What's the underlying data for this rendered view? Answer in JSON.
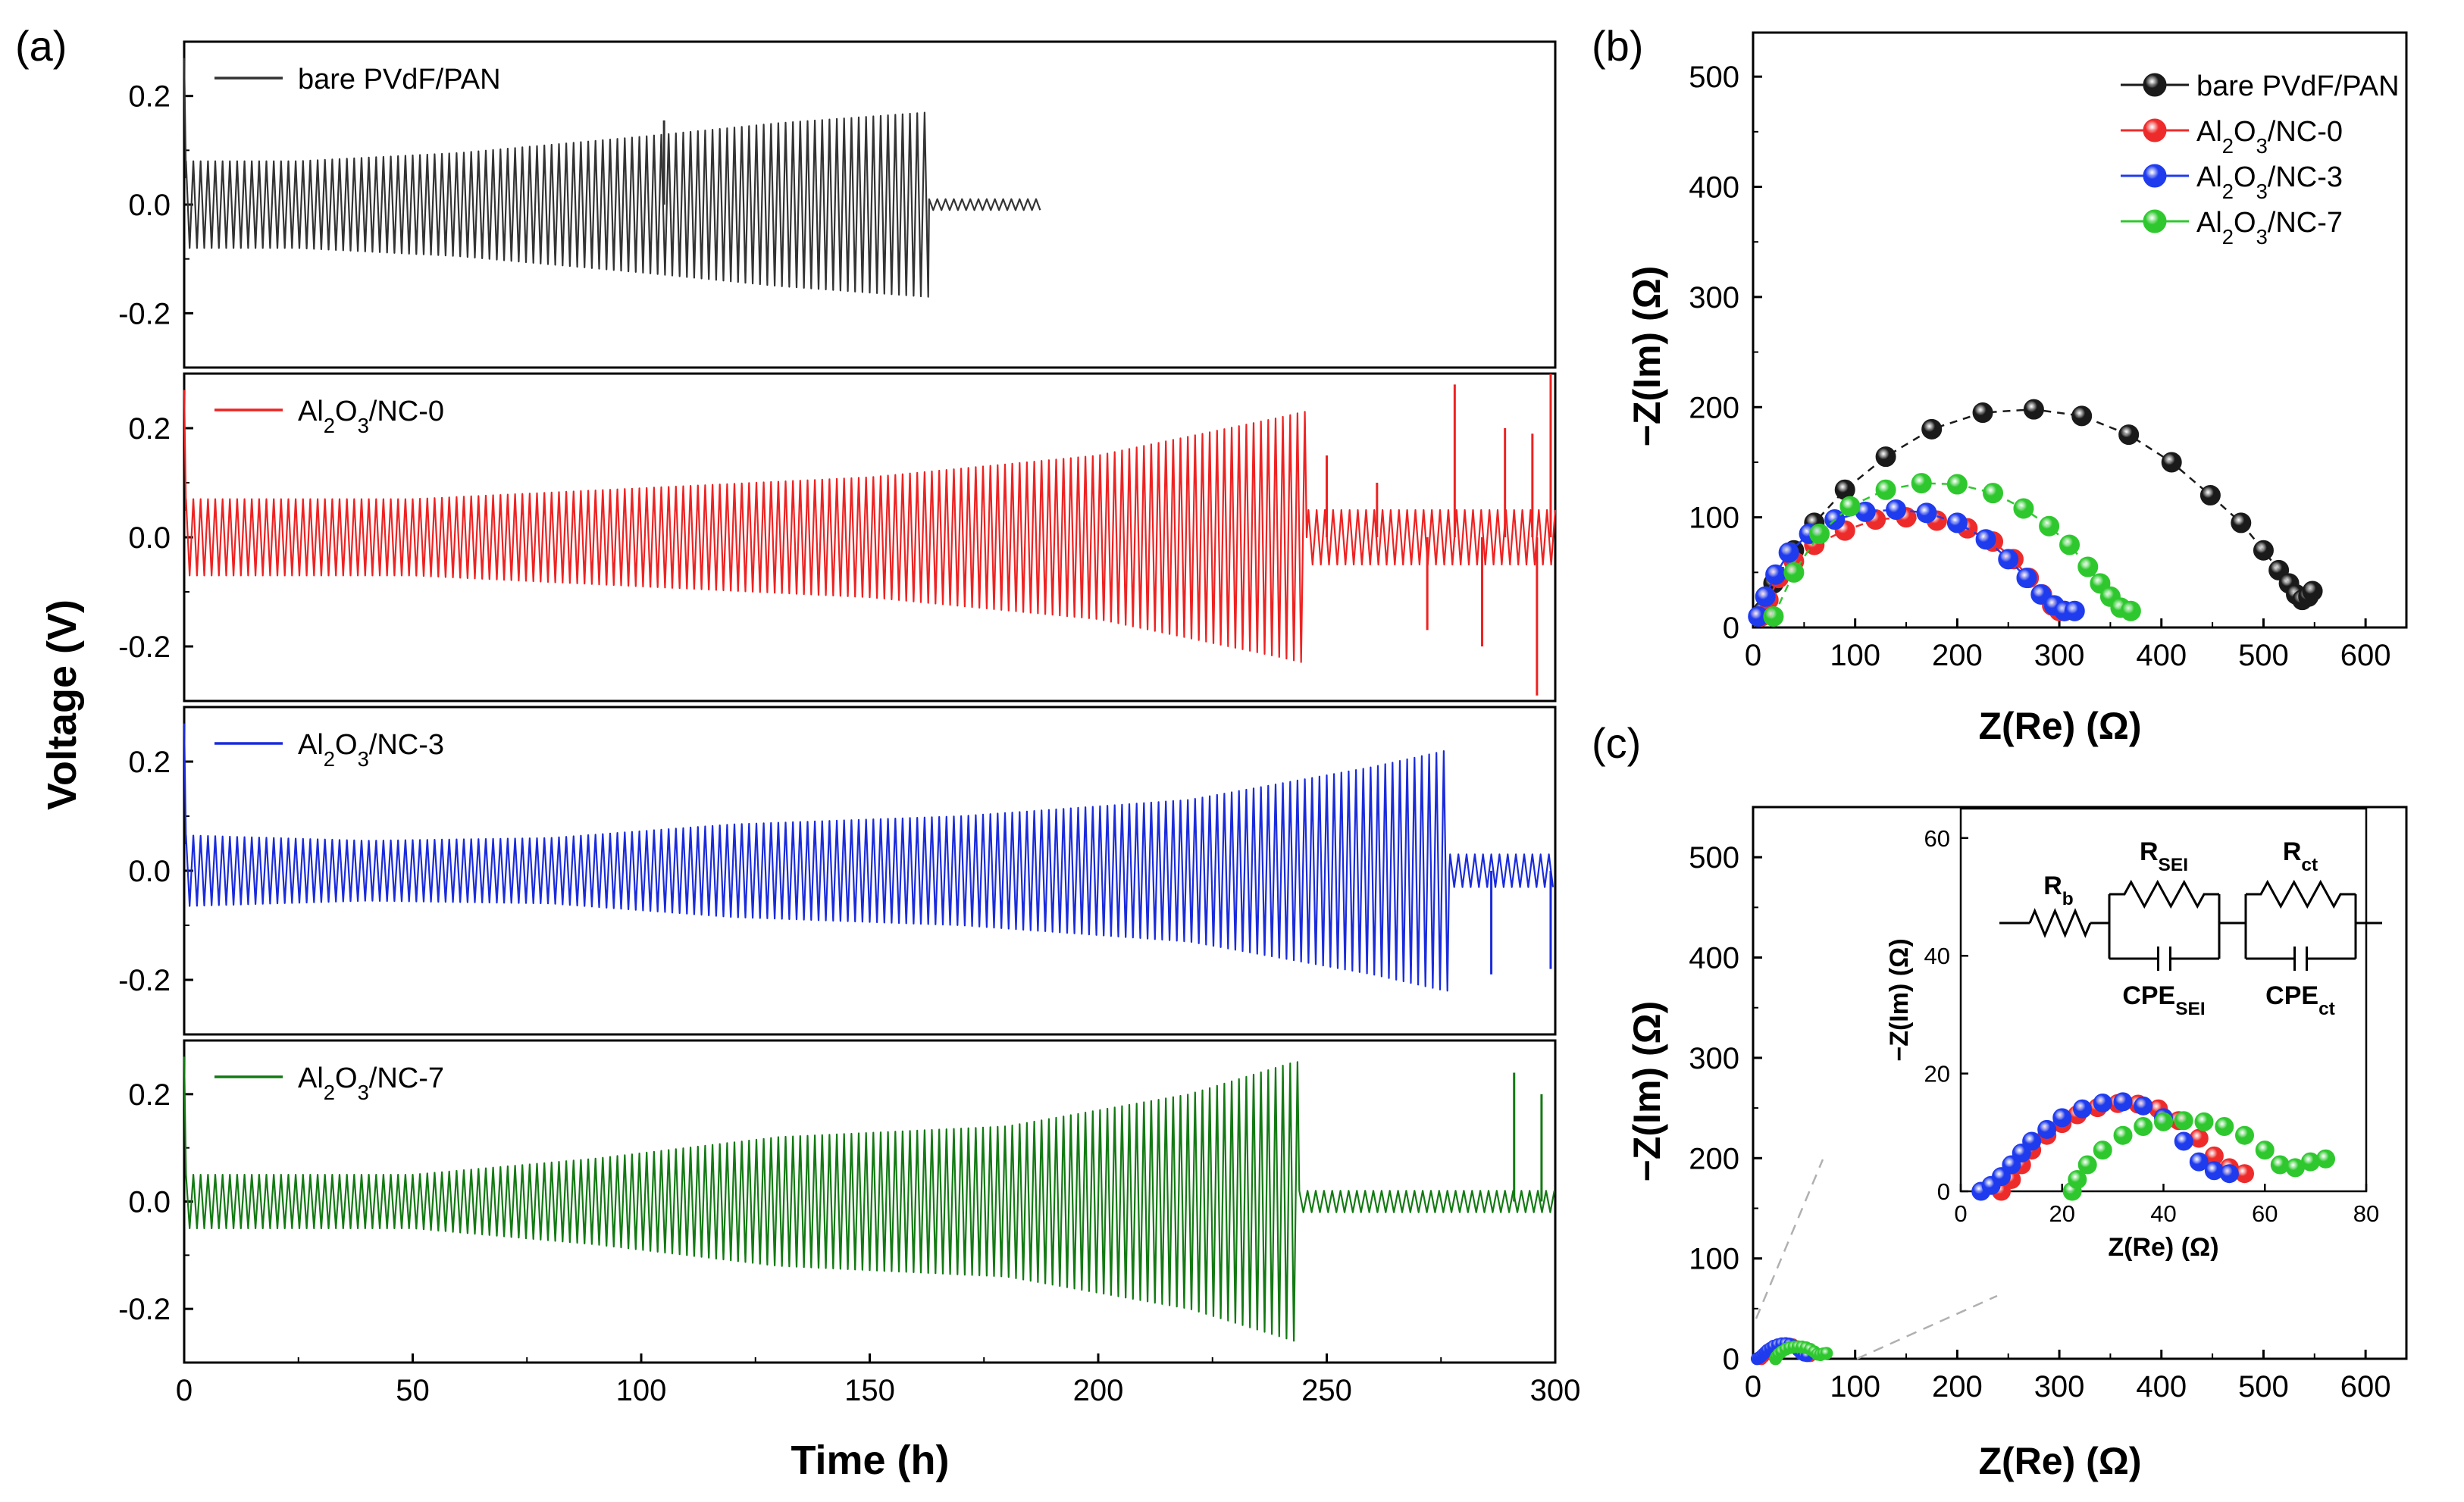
{
  "chart_data": [
    {
      "id": "a",
      "type": "line",
      "panel_label": "(a)",
      "xlabel": "Time (h)",
      "ylabel": "Voltage (V)",
      "xlim": [
        0,
        300
      ],
      "xticks": [
        "0",
        "50",
        "100",
        "150",
        "200",
        "250",
        "300"
      ],
      "series": [
        {
          "name": "bare PVdF/PAN",
          "label_parts": [
            "bare PVdF/PAN"
          ],
          "color": "#333333",
          "ylim": [
            -0.3,
            0.3
          ],
          "yticks": [
            "-0.2",
            "0.0",
            "0.2"
          ],
          "end_time": 188,
          "short_circuit_time": 163,
          "envelope_time": [
            0,
            25,
            60,
            100,
            130,
            163
          ],
          "envelope_amplitude": [
            0.08,
            0.08,
            0.095,
            0.125,
            0.15,
            0.17
          ],
          "short_circuit_amplitude": 0.01,
          "spikes": [
            {
              "t": 105,
              "v": 0.155
            }
          ]
        },
        {
          "name": "Al2O3/NC-0",
          "label_parts": [
            "Al",
            "2",
            "O",
            "3",
            "/NC-0"
          ],
          "color": "#ee2222",
          "ylim": [
            -0.3,
            0.3
          ],
          "yticks": [
            "-0.2",
            "0.0",
            "0.2"
          ],
          "end_time": 300,
          "short_circuit_time": 246,
          "envelope_time": [
            0,
            50,
            100,
            150,
            200,
            240,
            245
          ],
          "envelope_amplitude": [
            0.07,
            0.07,
            0.09,
            0.11,
            0.15,
            0.22,
            0.23
          ],
          "short_circuit_amplitude": 0.05,
          "spikes": [
            {
              "t": 250,
              "v": 0.15
            },
            {
              "t": 261,
              "v": 0.1
            },
            {
              "t": 272,
              "v": -0.17
            },
            {
              "t": 278,
              "v": 0.28
            },
            {
              "t": 284,
              "v": -0.2
            },
            {
              "t": 289,
              "v": 0.2
            },
            {
              "t": 295,
              "v": 0.19
            },
            {
              "t": 296,
              "v": -0.29
            },
            {
              "t": 299,
              "v": 0.3
            }
          ]
        },
        {
          "name": "Al2O3/NC-3",
          "label_parts": [
            "Al",
            "2",
            "O",
            "3",
            "/NC-3"
          ],
          "color": "#1a2bdc",
          "ylim": [
            -0.3,
            0.3
          ],
          "yticks": [
            "-0.2",
            "0.0",
            "0.2"
          ],
          "end_time": 300,
          "short_circuit_time": 277,
          "envelope_time": [
            0,
            40,
            80,
            120,
            170,
            220,
            260,
            276
          ],
          "envelope_amplitude": [
            0.065,
            0.055,
            0.06,
            0.085,
            0.1,
            0.13,
            0.19,
            0.22
          ],
          "short_circuit_amplitude": 0.03,
          "spikes": [
            {
              "t": 286,
              "v": -0.19
            },
            {
              "t": 299,
              "v": -0.18
            }
          ]
        },
        {
          "name": "Al2O3/NC-7",
          "label_parts": [
            "Al",
            "2",
            "O",
            "3",
            "/NC-7"
          ],
          "color": "#137a13",
          "ylim": [
            -0.3,
            0.3
          ],
          "yticks": [
            "-0.2",
            "0.0",
            "0.2"
          ],
          "end_time": 300,
          "short_circuit_time": 244,
          "envelope_time": [
            0,
            50,
            90,
            130,
            180,
            220,
            243
          ],
          "envelope_amplitude": [
            0.05,
            0.05,
            0.08,
            0.12,
            0.14,
            0.2,
            0.26
          ],
          "short_circuit_amplitude": 0.02,
          "spikes": [
            {
              "t": 291,
              "v": 0.24
            },
            {
              "t": 297,
              "v": 0.2
            }
          ]
        }
      ]
    },
    {
      "id": "b",
      "type": "scatter",
      "panel_label": "(b)",
      "xlabel": "Z(Re) (Ω)",
      "ylabel": "−Z(Im) (Ω)",
      "xlim": [
        0,
        640
      ],
      "ylim": [
        0,
        540
      ],
      "xticks": [
        "0",
        "100",
        "200",
        "300",
        "400",
        "500",
        "600"
      ],
      "yticks": [
        "0",
        "100",
        "200",
        "300",
        "400",
        "500"
      ],
      "series": [
        {
          "name": "bare PVdF/PAN",
          "label_parts": [
            "bare PVdF/PAN"
          ],
          "color": "#1a1a1a",
          "x": [
            10,
            20,
            40,
            60,
            90,
            130,
            175,
            225,
            275,
            322,
            368,
            410,
            448,
            478,
            500,
            515,
            525,
            532,
            538,
            544,
            548
          ],
          "y": [
            15,
            40,
            70,
            95,
            125,
            155,
            180,
            195,
            198,
            192,
            175,
            150,
            120,
            95,
            70,
            52,
            40,
            30,
            25,
            28,
            33
          ]
        },
        {
          "name": "Al2O3/NC-0",
          "label_parts": [
            "Al",
            "2",
            "O",
            "3",
            "/NC-0"
          ],
          "color": "#ee2b2b",
          "x": [
            8,
            15,
            25,
            40,
            60,
            90,
            120,
            150,
            180,
            210,
            235,
            255,
            270,
            283,
            293,
            300,
            305
          ],
          "y": [
            10,
            25,
            45,
            60,
            75,
            88,
            98,
            100,
            97,
            90,
            78,
            62,
            45,
            30,
            20,
            15,
            15
          ]
        },
        {
          "name": "Al2O3/NC-3",
          "label_parts": [
            "Al",
            "2",
            "O",
            "3",
            "/NC-3"
          ],
          "color": "#1f3bee",
          "x": [
            5,
            12,
            22,
            35,
            55,
            80,
            110,
            140,
            170,
            200,
            228,
            250,
            268,
            282,
            295,
            305,
            315
          ],
          "y": [
            10,
            28,
            48,
            68,
            85,
            98,
            105,
            107,
            104,
            95,
            80,
            62,
            45,
            30,
            20,
            15,
            15
          ]
        },
        {
          "name": "Al2O3/NC-7",
          "label_parts": [
            "Al",
            "2",
            "O",
            "3",
            "/NC-7"
          ],
          "color": "#2ec82e",
          "x": [
            20,
            40,
            65,
            95,
            130,
            165,
            200,
            235,
            265,
            290,
            310,
            328,
            340,
            350,
            360,
            370
          ],
          "y": [
            10,
            50,
            85,
            110,
            125,
            131,
            130,
            122,
            108,
            92,
            75,
            55,
            40,
            28,
            18,
            15
          ]
        }
      ]
    },
    {
      "id": "c",
      "type": "scatter",
      "panel_label": "(c)",
      "xlabel": "Z(Re) (Ω)",
      "ylabel": "−Z(Im) (Ω)",
      "xlim": [
        0,
        640
      ],
      "ylim": [
        0,
        550
      ],
      "xticks": [
        "0",
        "100",
        "200",
        "300",
        "400",
        "500",
        "600"
      ],
      "yticks": [
        "0",
        "100",
        "200",
        "300",
        "400",
        "500"
      ],
      "series": [
        {
          "name": "Al2O3/NC-0",
          "color": "#ee2b2b",
          "x": [
            8,
            10,
            12,
            14,
            17,
            20,
            23,
            27,
            31,
            35,
            39,
            43,
            47,
            50,
            53,
            56
          ],
          "y": [
            0,
            2,
            4.5,
            7,
            9.5,
            11.5,
            13,
            14.2,
            14.9,
            14.8,
            14,
            12,
            9,
            6,
            4,
            3
          ]
        },
        {
          "name": "Al2O3/NC-3",
          "color": "#1f3bee",
          "x": [
            4,
            6,
            8,
            10,
            12,
            14,
            17,
            20,
            24,
            28,
            32,
            36,
            40,
            44,
            47,
            50,
            53
          ],
          "y": [
            0,
            1,
            2.5,
            4.5,
            6.5,
            8.5,
            10.5,
            12.5,
            14,
            15,
            15.2,
            14.5,
            12.5,
            8.5,
            5,
            3.5,
            3
          ]
        },
        {
          "name": "Al2O3/NC-7",
          "color": "#2ec82e",
          "x": [
            22,
            23,
            25,
            28,
            32,
            36,
            40,
            44,
            48,
            52,
            56,
            60,
            63,
            66,
            69,
            72
          ],
          "y": [
            0,
            2,
            4.5,
            7,
            9.5,
            11,
            11.8,
            12,
            11.8,
            11,
            9.5,
            7,
            4.5,
            4,
            5,
            5.5
          ]
        }
      ],
      "inset": {
        "xlim": [
          0,
          80
        ],
        "ylim": [
          0,
          65
        ],
        "xticks": [
          "0",
          "20",
          "40",
          "60",
          "80"
        ],
        "yticks": [
          "0",
          "20",
          "40",
          "60"
        ],
        "xlabel": "Z(Re) (Ω)",
        "ylabel": "−Z(Im) (Ω)",
        "circuit": {
          "rb": "R",
          "rb_sub": "b",
          "rsei": "R",
          "rsei_sub": "SEI",
          "rct": "R",
          "rct_sub": "ct",
          "cpe_sei": "CPE",
          "cpe_sei_sub": "SEI",
          "cpe_ct": "CPE",
          "cpe_ct_sub": "ct"
        }
      }
    }
  ]
}
